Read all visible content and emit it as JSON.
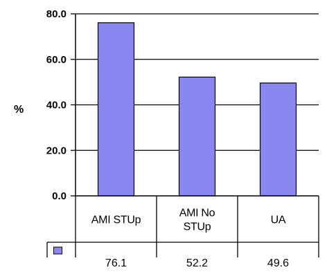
{
  "chart_data": {
    "type": "bar",
    "title": "",
    "xlabel": "",
    "ylabel": "%",
    "ylim": [
      0,
      80
    ],
    "yticks": [
      "0.0",
      "20.0",
      "40.0",
      "60.0",
      "80.0"
    ],
    "categories": [
      [
        "AMI STUp"
      ],
      [
        "AMI No",
        "STUp"
      ],
      [
        "UA"
      ]
    ],
    "series": [
      {
        "values": [
          76.1,
          52.2,
          49.6
        ],
        "value_labels": [
          "76.1",
          "52.2",
          "49.6"
        ],
        "color": "#8888f0"
      }
    ],
    "grid": true,
    "data_table": true
  }
}
